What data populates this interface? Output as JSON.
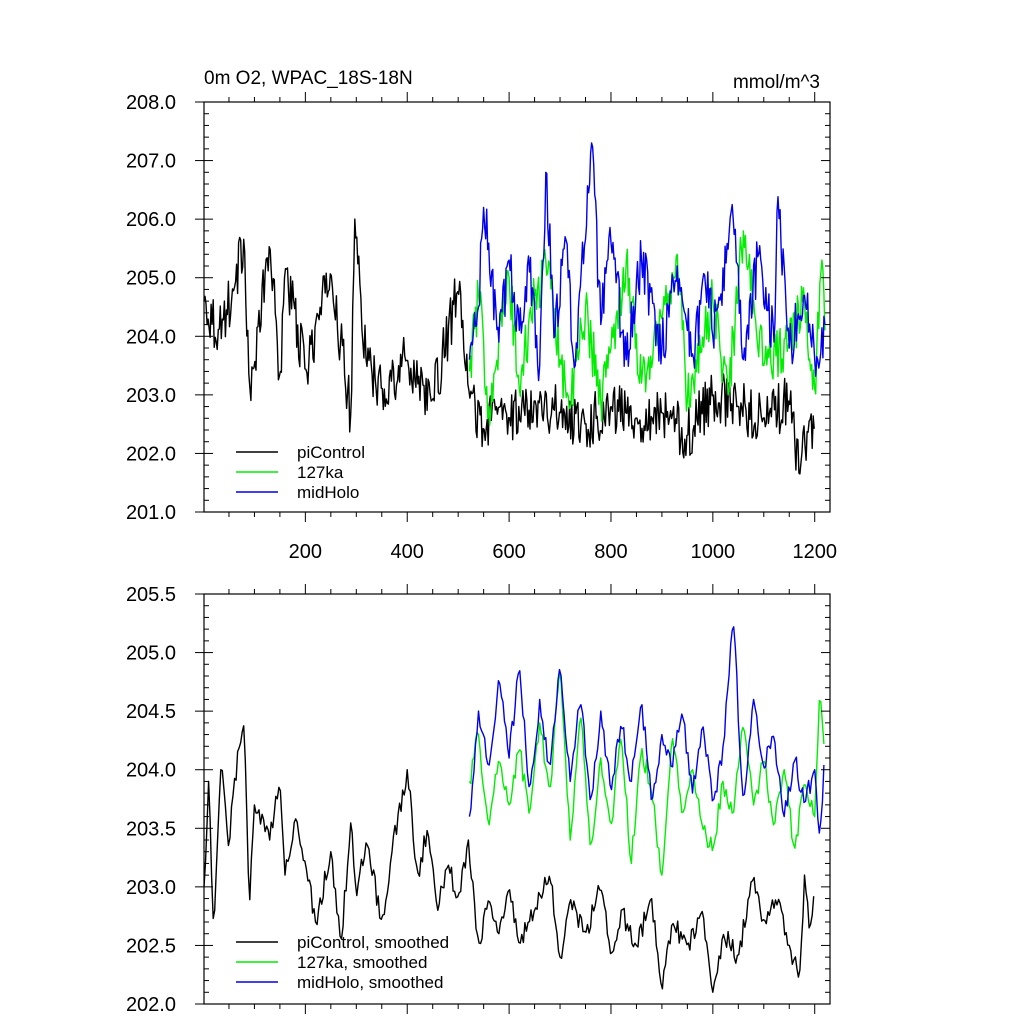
{
  "chart_data": [
    {
      "type": "line",
      "title": "0m O2, WPAC_18S-18N",
      "units": "mmol/m^3",
      "xlim": [
        1,
        1230
      ],
      "ylim": [
        201.0,
        208.0
      ],
      "xticks": [
        200,
        400,
        600,
        800,
        1000,
        1200
      ],
      "xtick_labels": [
        "200",
        "400",
        "600",
        "800",
        "1000",
        "1200"
      ],
      "yticks": [
        201,
        202,
        203,
        204,
        205,
        206,
        207,
        208
      ],
      "ytick_labels": [
        "201.0",
        "202.0",
        "203.0",
        "204.0",
        "205.0",
        "206.0",
        "207.0",
        "208.0"
      ],
      "legend_position": "bottom-left",
      "series": [
        {
          "name": "piControl",
          "color": "#000000",
          "x": [
            1,
            30,
            60,
            80,
            90,
            100,
            130,
            150,
            160,
            200,
            250,
            290,
            297,
            320,
            350,
            400,
            450,
            500,
            520,
            550,
            580,
            600,
            650,
            700,
            750,
            800,
            850,
            900,
            950,
            1000,
            1050,
            1100,
            1150,
            1170,
            1190,
            1200
          ],
          "y": [
            204.6,
            204.1,
            204.8,
            205.7,
            203.1,
            203.5,
            205.6,
            203.2,
            205.2,
            203.4,
            205.1,
            202.6,
            206.0,
            203.5,
            203.1,
            203.6,
            202.9,
            204.8,
            203.1,
            202.4,
            202.8,
            202.6,
            202.9,
            202.7,
            202.5,
            202.8,
            202.6,
            202.7,
            202.3,
            203.0,
            202.8,
            202.6,
            202.9,
            201.6,
            202.6,
            202.4
          ]
        },
        {
          "name": "127ka",
          "color": "#00ee00",
          "x": [
            522,
            540,
            560,
            600,
            620,
            650,
            680,
            700,
            720,
            750,
            780,
            800,
            830,
            860,
            900,
            930,
            950,
            1000,
            1030,
            1060,
            1100,
            1150,
            1180,
            1200,
            1210,
            1215,
            1220
          ],
          "y": [
            203.4,
            204.7,
            202.8,
            205.0,
            203.1,
            204.7,
            205.2,
            203.6,
            202.8,
            204.5,
            202.9,
            203.8,
            205.3,
            203.2,
            204.3,
            205.4,
            202.9,
            204.6,
            203.0,
            205.8,
            203.5,
            203.9,
            204.6,
            203.1,
            204.9,
            205.4,
            204.1
          ]
        },
        {
          "name": "midHolo",
          "color": "#0000ee",
          "x": [
            522,
            540,
            550,
            580,
            600,
            620,
            640,
            660,
            672,
            690,
            710,
            730,
            762,
            780,
            800,
            830,
            860,
            900,
            930,
            960,
            990,
            1000,
            1040,
            1060,
            1090,
            1120,
            1127,
            1150,
            1180,
            1200,
            1220
          ],
          "y": [
            203.6,
            204.5,
            206.2,
            203.9,
            205.3,
            204.1,
            205.1,
            203.5,
            206.8,
            204.0,
            205.7,
            203.5,
            207.3,
            204.2,
            205.6,
            203.6,
            205.3,
            203.8,
            205.2,
            203.7,
            205.1,
            204.0,
            206.0,
            203.6,
            205.4,
            203.9,
            206.5,
            203.8,
            204.7,
            203.6,
            204.2
          ]
        }
      ]
    },
    {
      "type": "line",
      "title": "",
      "xlim": [
        1,
        1230
      ],
      "ylim": [
        202.0,
        205.5
      ],
      "xticks": [
        200,
        400,
        600,
        800,
        1000,
        1200
      ],
      "yticks": [
        202.0,
        202.5,
        203.0,
        203.5,
        204.0,
        204.5,
        205.0,
        205.5
      ],
      "ytick_labels": [
        "202.0",
        "202.5",
        "203.0",
        "203.5",
        "204.0",
        "204.5",
        "205.0",
        "205.5"
      ],
      "legend_position": "bottom-left",
      "series": [
        {
          "name": "piControl, smoothed",
          "color": "#000000",
          "x": [
            1,
            10,
            20,
            35,
            50,
            60,
            80,
            90,
            100,
            130,
            150,
            160,
            180,
            200,
            220,
            250,
            270,
            290,
            300,
            320,
            350,
            370,
            400,
            420,
            440,
            460,
            480,
            500,
            520,
            540,
            560,
            580,
            600,
            620,
            650,
            680,
            700,
            720,
            750,
            780,
            800,
            820,
            850,
            880,
            900,
            920,
            950,
            980,
            1000,
            1020,
            1050,
            1080,
            1100,
            1130,
            1150,
            1170,
            1180,
            1190,
            1200
          ],
          "y": [
            203.0,
            203.9,
            202.6,
            204.1,
            203.3,
            203.9,
            204.4,
            202.8,
            203.7,
            203.4,
            203.9,
            203.1,
            203.6,
            203.2,
            202.7,
            203.3,
            202.5,
            203.6,
            202.9,
            203.4,
            202.7,
            203.3,
            204.0,
            203.1,
            203.5,
            202.8,
            203.2,
            202.9,
            203.4,
            202.5,
            202.9,
            202.6,
            203.0,
            202.5,
            202.8,
            203.1,
            202.4,
            202.9,
            202.6,
            203.0,
            202.4,
            202.8,
            202.5,
            202.9,
            202.1,
            202.7,
            202.5,
            202.8,
            202.1,
            202.6,
            202.4,
            203.1,
            202.7,
            202.9,
            202.5,
            202.2,
            203.1,
            202.6,
            203.0
          ]
        },
        {
          "name": "127ka, smoothed",
          "color": "#00ee00",
          "x": [
            522,
            540,
            560,
            580,
            600,
            620,
            640,
            660,
            680,
            700,
            720,
            740,
            760,
            780,
            800,
            820,
            840,
            860,
            880,
            900,
            920,
            940,
            960,
            980,
            1000,
            1020,
            1040,
            1060,
            1080,
            1100,
            1120,
            1140,
            1160,
            1180,
            1200,
            1210,
            1215,
            1220
          ],
          "y": [
            203.9,
            204.3,
            203.5,
            204.1,
            203.7,
            204.2,
            203.6,
            204.4,
            203.8,
            204.9,
            203.4,
            204.5,
            203.3,
            204.1,
            203.5,
            204.3,
            203.2,
            204.2,
            203.8,
            203.1,
            204.3,
            203.6,
            204.0,
            203.5,
            203.3,
            203.9,
            203.6,
            204.4,
            203.7,
            204.1,
            203.5,
            204.0,
            203.3,
            203.9,
            203.6,
            204.7,
            204.4,
            204.1
          ]
        },
        {
          "name": "midHolo, smoothed",
          "color": "#0000ee",
          "x": [
            522,
            540,
            560,
            580,
            600,
            620,
            640,
            660,
            680,
            700,
            720,
            740,
            760,
            780,
            800,
            820,
            840,
            860,
            880,
            900,
            920,
            940,
            960,
            980,
            1000,
            1020,
            1040,
            1060,
            1080,
            1100,
            1120,
            1140,
            1160,
            1180,
            1200,
            1210,
            1220
          ],
          "y": [
            203.6,
            204.5,
            204.0,
            204.8,
            204.1,
            204.9,
            203.8,
            204.6,
            204.0,
            204.9,
            203.9,
            204.6,
            203.7,
            204.5,
            203.8,
            204.4,
            203.9,
            204.6,
            203.7,
            204.3,
            204.0,
            204.5,
            203.8,
            204.4,
            203.7,
            204.2,
            205.3,
            203.7,
            204.6,
            204.0,
            204.3,
            203.6,
            204.1,
            203.7,
            204.0,
            203.4,
            204.2
          ]
        }
      ]
    }
  ]
}
